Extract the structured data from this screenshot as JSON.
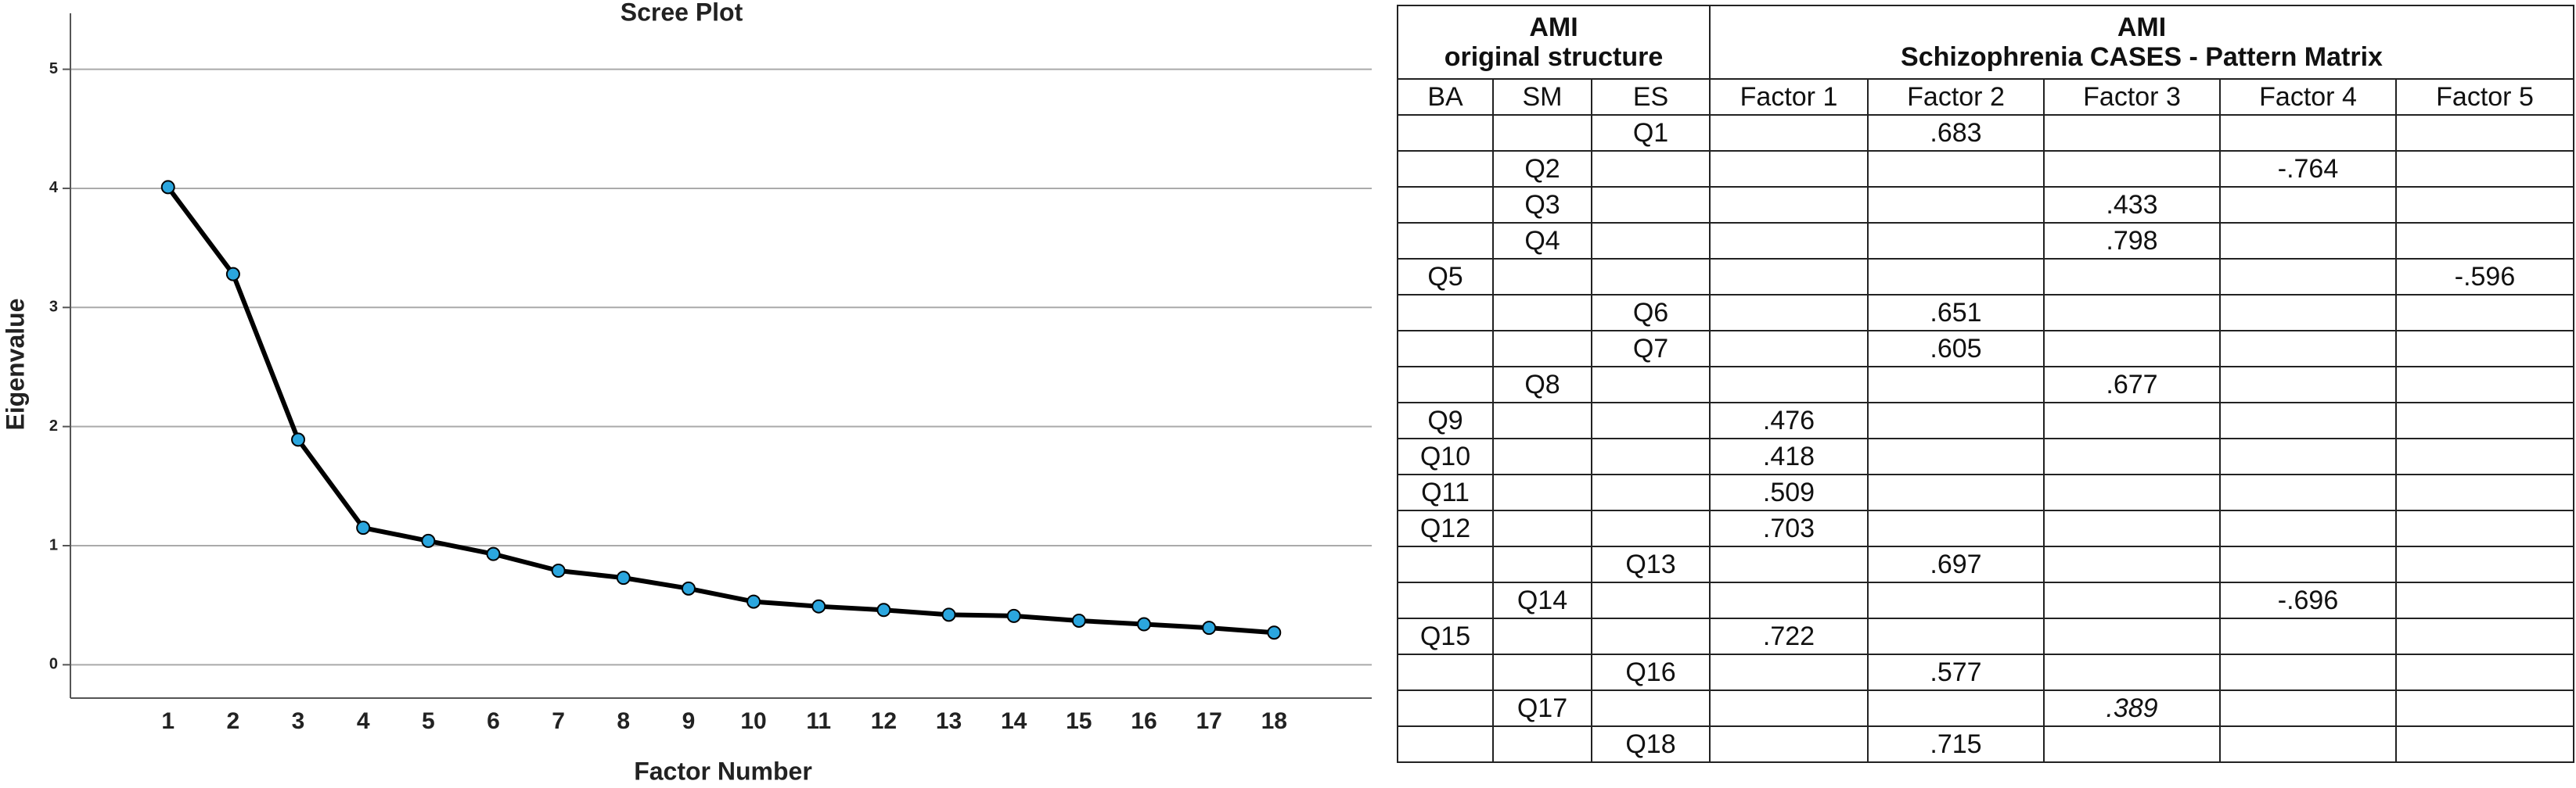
{
  "chart_data": {
    "type": "line",
    "title": "Scree Plot",
    "xlabel": "Factor Number",
    "ylabel": "Eigenvalue",
    "x": [
      1,
      2,
      3,
      4,
      5,
      6,
      7,
      8,
      9,
      10,
      11,
      12,
      13,
      14,
      15,
      16,
      17,
      18
    ],
    "series": [
      {
        "name": null,
        "color": "#000000",
        "marker_color": "#2ba6de",
        "values": [
          4.01,
          3.28,
          1.89,
          1.15,
          1.04,
          0.93,
          0.79,
          0.73,
          0.64,
          0.53,
          0.49,
          0.46,
          0.42,
          0.41,
          0.37,
          0.34,
          0.31,
          0.27
        ]
      }
    ],
    "xlim": [
      -0.5,
      19.5
    ],
    "xticks": [
      1,
      2,
      3,
      4,
      5,
      6,
      7,
      8,
      9,
      10,
      11,
      12,
      13,
      14,
      15,
      16,
      17,
      18
    ],
    "ylim": [
      -0.28,
      5.47
    ],
    "yticks": [
      0,
      1,
      2,
      3,
      4,
      5
    ],
    "grid": true
  },
  "table": {
    "group_left": [
      "AMI",
      "original structure"
    ],
    "group_right": [
      "AMI",
      "Schizophrenia CASES - Pattern Matrix"
    ],
    "columns": [
      "BA",
      "SM",
      "ES",
      "Factor 1",
      "Factor 2",
      "Factor 3",
      "Factor 4",
      "Factor 5"
    ],
    "rows": [
      [
        null,
        null,
        "Q1",
        null,
        ".683",
        null,
        null,
        null
      ],
      [
        null,
        "Q2",
        null,
        null,
        null,
        null,
        "-.764",
        null
      ],
      [
        null,
        "Q3",
        null,
        null,
        null,
        ".433",
        null,
        null
      ],
      [
        null,
        "Q4",
        null,
        null,
        null,
        ".798",
        null,
        null
      ],
      [
        "Q5",
        null,
        null,
        null,
        null,
        null,
        null,
        "-.596"
      ],
      [
        null,
        null,
        "Q6",
        null,
        ".651",
        null,
        null,
        null
      ],
      [
        null,
        null,
        "Q7",
        null,
        ".605",
        null,
        null,
        null
      ],
      [
        null,
        "Q8",
        null,
        null,
        null,
        ".677",
        null,
        null
      ],
      [
        "Q9",
        null,
        null,
        ".476",
        null,
        null,
        null,
        null
      ],
      [
        "Q10",
        null,
        null,
        ".418",
        null,
        null,
        null,
        null
      ],
      [
        "Q11",
        null,
        null,
        ".509",
        null,
        null,
        null,
        null
      ],
      [
        "Q12",
        null,
        null,
        ".703",
        null,
        null,
        null,
        null
      ],
      [
        null,
        null,
        "Q13",
        null,
        ".697",
        null,
        null,
        null
      ],
      [
        null,
        "Q14",
        null,
        null,
        null,
        null,
        "-.696",
        null
      ],
      [
        "Q15",
        null,
        null,
        ".722",
        null,
        null,
        null,
        null
      ],
      [
        null,
        null,
        "Q16",
        null,
        ".577",
        null,
        null,
        null
      ],
      [
        null,
        "Q17",
        null,
        null,
        null,
        {
          "text": ".389",
          "italic": true
        },
        null,
        null
      ],
      [
        null,
        null,
        "Q18",
        null,
        ".715",
        null,
        null,
        null
      ]
    ]
  }
}
